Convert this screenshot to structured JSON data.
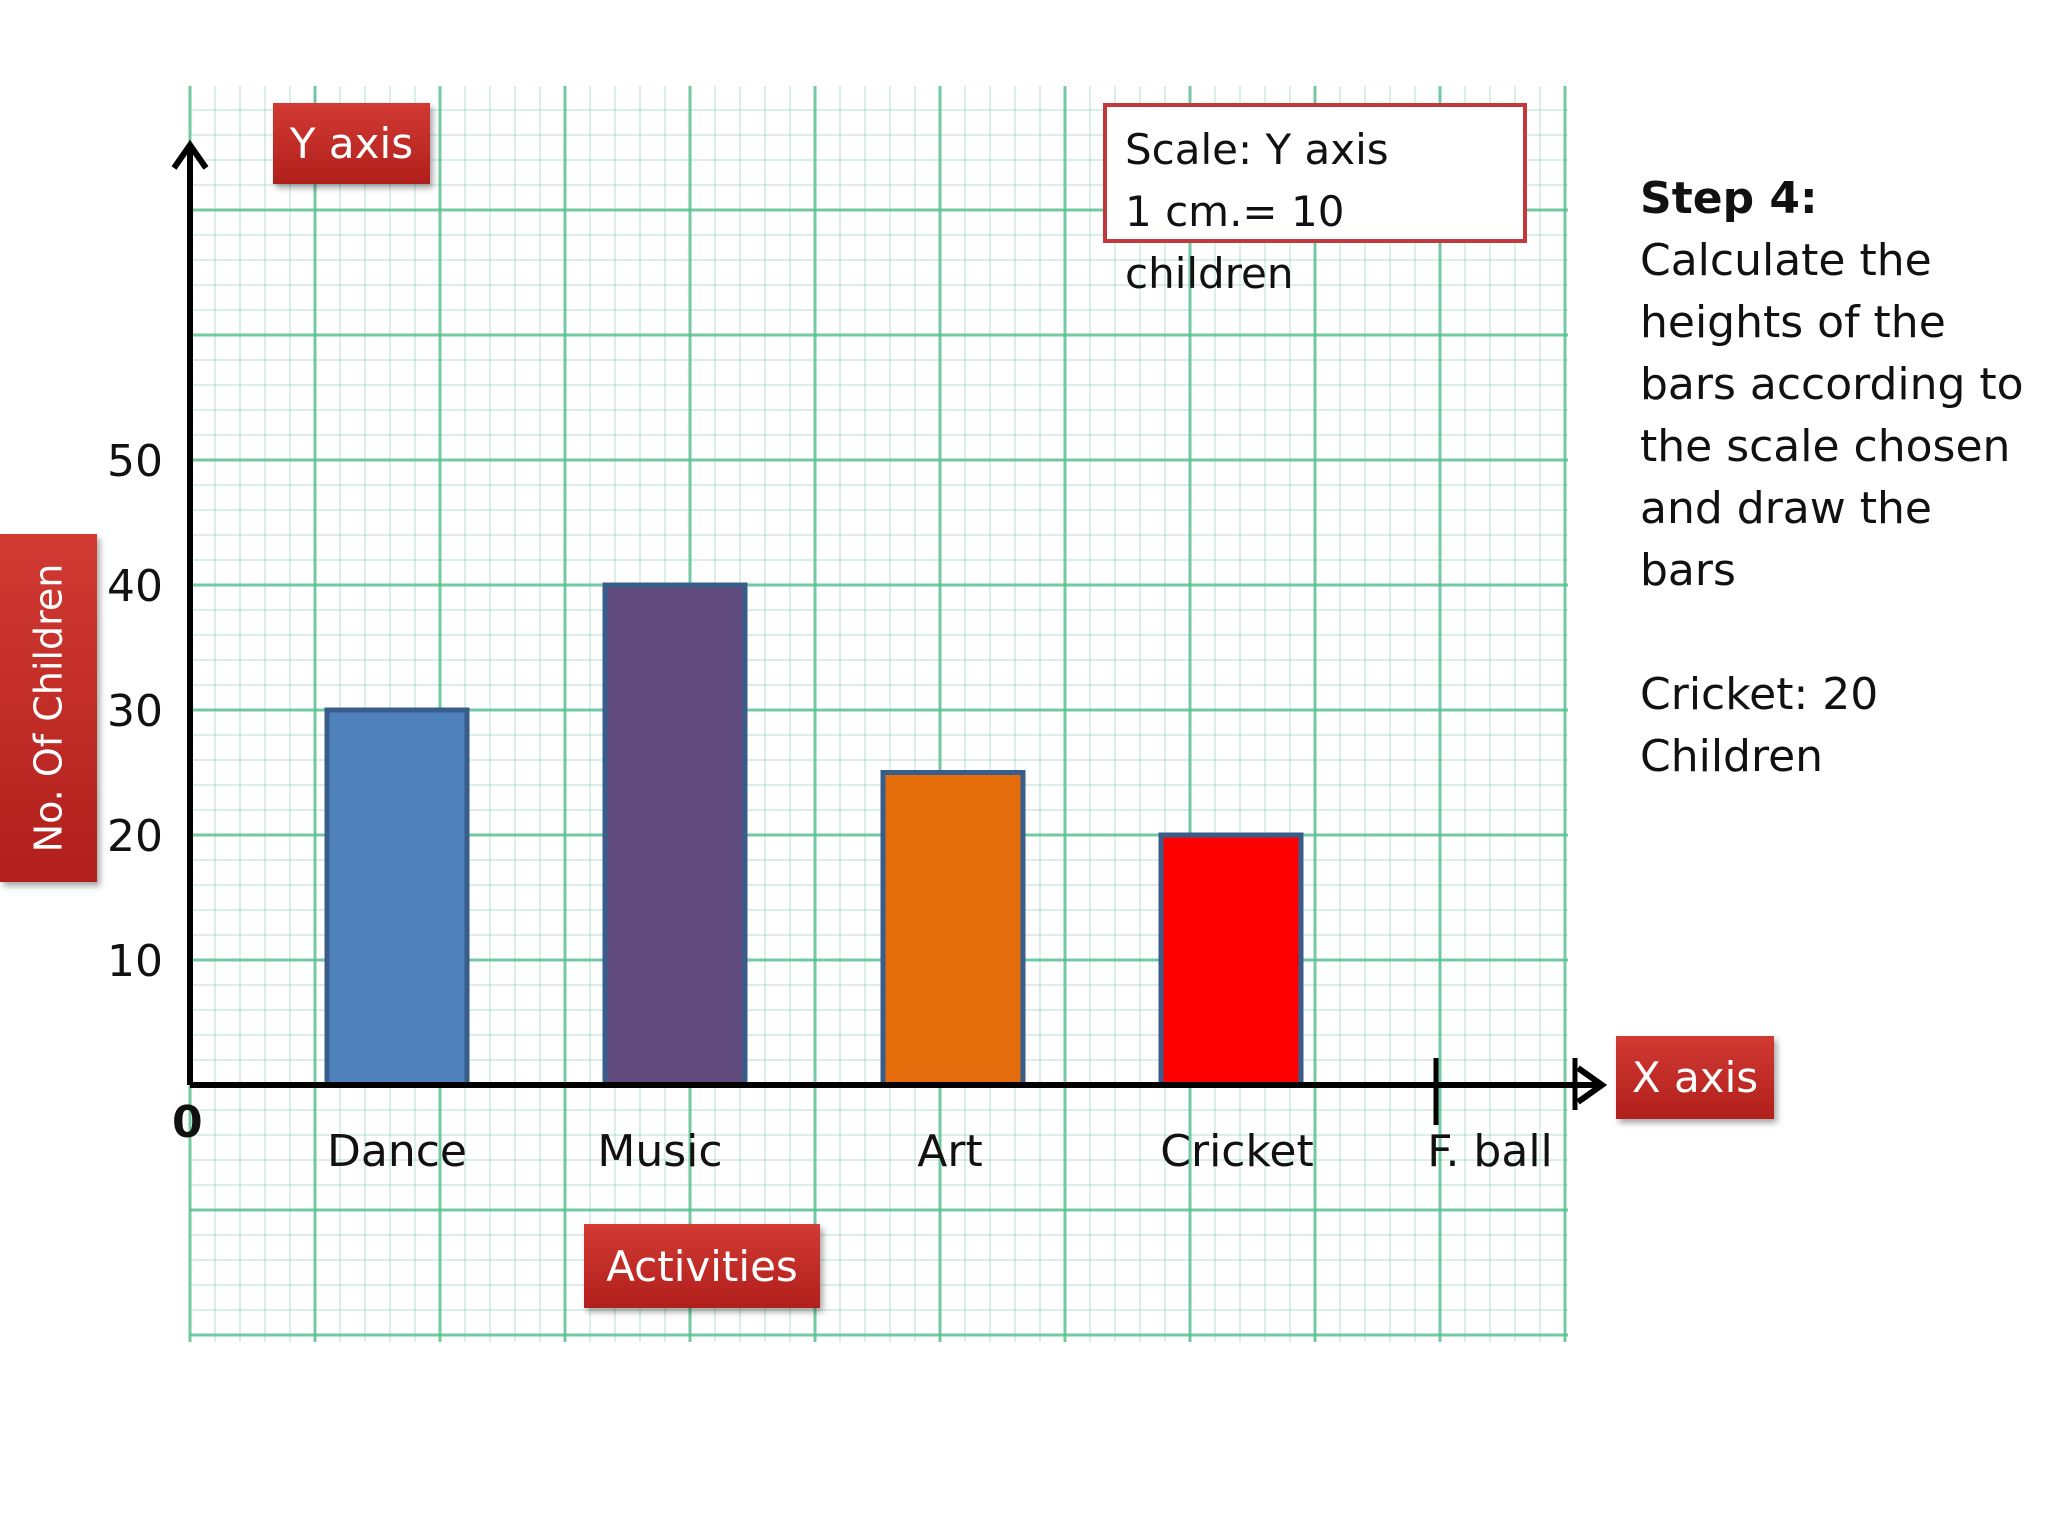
{
  "chart_data": {
    "type": "bar",
    "categories": [
      "Dance",
      "Music",
      "Art",
      "Cricket",
      "F. ball"
    ],
    "values": [
      30,
      40,
      25,
      20,
      null
    ],
    "bar_colors": [
      "#4f81bd",
      "#604a7b",
      "#e46c0a",
      "#ff0000"
    ],
    "bar_border": "#385d8a",
    "ylim": [
      0,
      70
    ],
    "yticks": [
      10,
      20,
      30,
      40,
      50
    ],
    "origin_label": "0",
    "grid": true,
    "grid_color": "#5bbf93"
  },
  "labels": {
    "y_axis_badge": "Y axis",
    "x_axis_badge": "X axis",
    "x_title_badge": "Activities",
    "y_title_badge": "No. Of Children"
  },
  "scale_box": {
    "line1": "Scale: Y axis",
    "line2": "1 cm.= 10 children"
  },
  "side_text": {
    "title": "Step 4:",
    "lines": [
      "Calculate the",
      "heights of the",
      "bars according to",
      "the scale chosen",
      "and draw the bars"
    ],
    "note_lines": [
      "Cricket: 20",
      "Children"
    ]
  },
  "colors": {
    "badge_red": "#c0302b",
    "axis": "#000000"
  }
}
